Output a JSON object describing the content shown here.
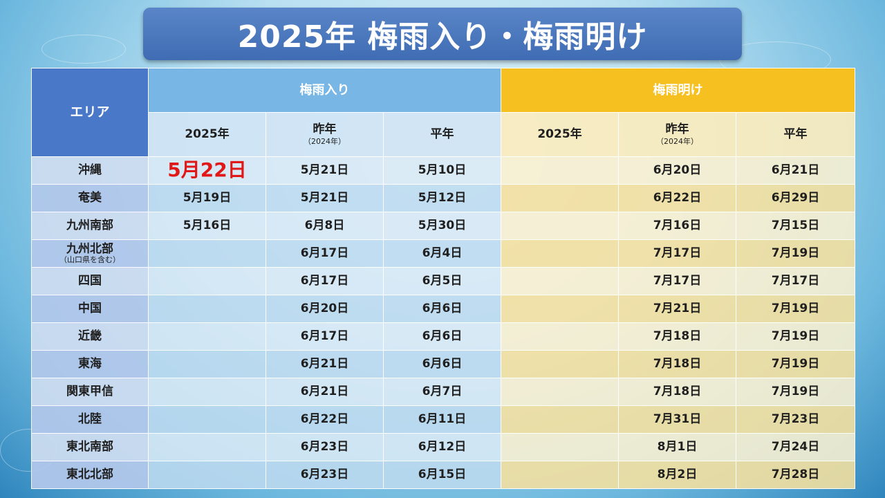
{
  "title": "2025年 梅雨入り・梅雨明け",
  "header": {
    "area": "エリア",
    "iri": "梅雨入り",
    "ake": "梅雨明け",
    "col_2025": "2025年",
    "col_last_year": "昨年",
    "col_last_year_note": "（2024年）",
    "col_normal": "平年"
  },
  "rows": [
    {
      "area": "沖縄",
      "area_note": "",
      "iri_2025": "5月22日",
      "iri_2024": "5月21日",
      "iri_normal": "5月10日",
      "ake_2025": "",
      "ake_2024": "6月20日",
      "ake_normal": "6月21日"
    },
    {
      "area": "奄美",
      "area_note": "",
      "iri_2025": "5月19日",
      "iri_2024": "5月21日",
      "iri_normal": "5月12日",
      "ake_2025": "",
      "ake_2024": "6月22日",
      "ake_normal": "6月29日"
    },
    {
      "area": "九州南部",
      "area_note": "",
      "iri_2025": "5月16日",
      "iri_2024": "6月8日",
      "iri_normal": "5月30日",
      "ake_2025": "",
      "ake_2024": "7月16日",
      "ake_normal": "7月15日"
    },
    {
      "area": "九州北部",
      "area_note": "（山口県を含む）",
      "iri_2025": "",
      "iri_2024": "6月17日",
      "iri_normal": "6月4日",
      "ake_2025": "",
      "ake_2024": "7月17日",
      "ake_normal": "7月19日"
    },
    {
      "area": "四国",
      "area_note": "",
      "iri_2025": "",
      "iri_2024": "6月17日",
      "iri_normal": "6月5日",
      "ake_2025": "",
      "ake_2024": "7月17日",
      "ake_normal": "7月17日"
    },
    {
      "area": "中国",
      "area_note": "",
      "iri_2025": "",
      "iri_2024": "6月20日",
      "iri_normal": "6月6日",
      "ake_2025": "",
      "ake_2024": "7月21日",
      "ake_normal": "7月19日"
    },
    {
      "area": "近畿",
      "area_note": "",
      "iri_2025": "",
      "iri_2024": "6月17日",
      "iri_normal": "6月6日",
      "ake_2025": "",
      "ake_2024": "7月18日",
      "ake_normal": "7月19日"
    },
    {
      "area": "東海",
      "area_note": "",
      "iri_2025": "",
      "iri_2024": "6月21日",
      "iri_normal": "6月6日",
      "ake_2025": "",
      "ake_2024": "7月18日",
      "ake_normal": "7月19日"
    },
    {
      "area": "関東甲信",
      "area_note": "",
      "iri_2025": "",
      "iri_2024": "6月21日",
      "iri_normal": "6月7日",
      "ake_2025": "",
      "ake_2024": "7月18日",
      "ake_normal": "7月19日"
    },
    {
      "area": "北陸",
      "area_note": "",
      "iri_2025": "",
      "iri_2024": "6月22日",
      "iri_normal": "6月11日",
      "ake_2025": "",
      "ake_2024": "7月31日",
      "ake_normal": "7月23日"
    },
    {
      "area": "東北南部",
      "area_note": "",
      "iri_2025": "",
      "iri_2024": "6月23日",
      "iri_normal": "6月12日",
      "ake_2025": "",
      "ake_2024": "8月1日",
      "ake_normal": "7月24日"
    },
    {
      "area": "東北北部",
      "area_note": "",
      "iri_2025": "",
      "iri_2024": "6月23日",
      "iri_normal": "6月15日",
      "ake_2025": "",
      "ake_2024": "8月2日",
      "ake_normal": "7月28日"
    }
  ],
  "colors": {
    "title_bg": "#4a78c8",
    "area_header": "#4a78c8",
    "iri_header": "#78b6e6",
    "ake_header": "#f5c020",
    "highlight_text": "#e01818"
  }
}
